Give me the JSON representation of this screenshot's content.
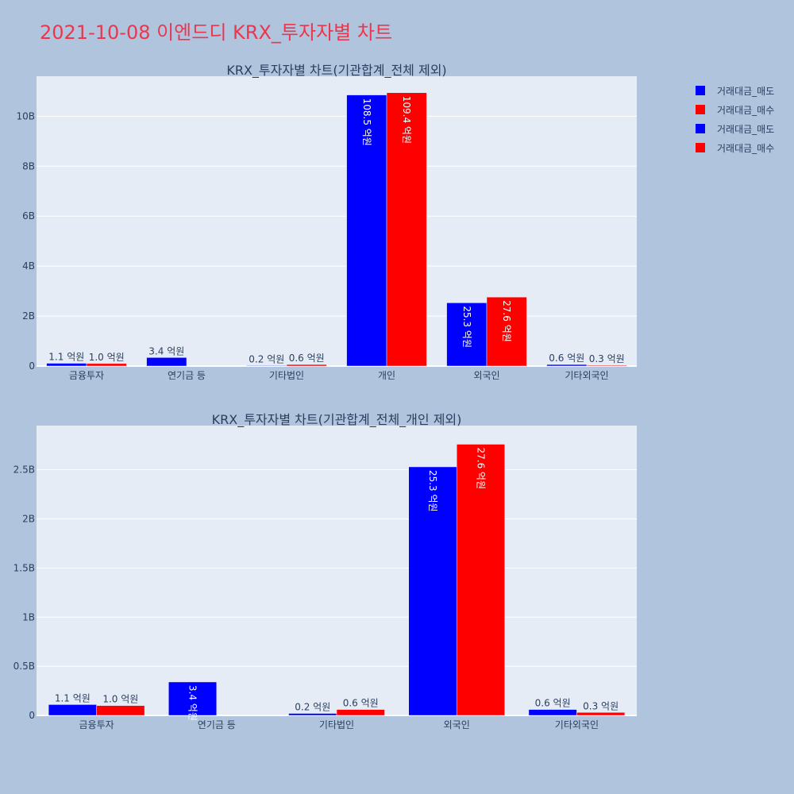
{
  "title": "2021-10-08 이엔드디 KRX_투자자별 차트",
  "legend": [
    {
      "label": "거래대금_매도",
      "color": "#0000ff"
    },
    {
      "label": "거래대금_매수",
      "color": "#ff0000"
    },
    {
      "label": "거래대금_매도",
      "color": "#0000ff"
    },
    {
      "label": "거래대금_매수",
      "color": "#ff0000"
    }
  ],
  "chart_data": [
    {
      "type": "bar",
      "title": "KRX_투자자별 차트(기관합계_전체 제외)",
      "categories": [
        "금융투자",
        "연기금 등",
        "기타법인",
        "개인",
        "외국인",
        "기타외국인"
      ],
      "series": [
        {
          "name": "거래대금_매도",
          "color": "#0000ff",
          "values": [
            110000000,
            340000000,
            20000000,
            10850000000,
            2530000000,
            60000000
          ],
          "labels": [
            "1.1 억원",
            "3.4 억원",
            "0.2 억원",
            "108.5 억원",
            "25.3 억원",
            "0.6 억원"
          ]
        },
        {
          "name": "거래대금_매수",
          "color": "#ff0000",
          "values": [
            100000000,
            0,
            60000000,
            10940000000,
            2760000000,
            30000000
          ],
          "labels": [
            "1.0 억원",
            "",
            "0.6 억원",
            "109.4 억원",
            "27.6 억원",
            "0.3 억원"
          ]
        }
      ],
      "yticks": [
        0,
        2000000000,
        4000000000,
        6000000000,
        8000000000,
        10000000000
      ],
      "yticklabels": [
        "0",
        "2B",
        "4B",
        "6B",
        "8B",
        "10B"
      ],
      "ylim": [
        0,
        11600000000
      ],
      "grid": true
    },
    {
      "type": "bar",
      "title": "KRX_투자자별 차트(기관합계_전체_개인 제외)",
      "categories": [
        "금융투자",
        "연기금 등",
        "기타법인",
        "외국인",
        "기타외국인"
      ],
      "series": [
        {
          "name": "거래대금_매도",
          "color": "#0000ff",
          "values": [
            110000000,
            340000000,
            20000000,
            2530000000,
            60000000
          ],
          "labels": [
            "1.1 억원",
            "3.4 억원",
            "0.2 억원",
            "25.3 억원",
            "0.6 억원"
          ]
        },
        {
          "name": "거래대금_매수",
          "color": "#ff0000",
          "values": [
            100000000,
            0,
            60000000,
            2760000000,
            30000000
          ],
          "labels": [
            "1.0 억원",
            "",
            "0.6 억원",
            "27.6 억원",
            "0.3 억원"
          ]
        }
      ],
      "yticks": [
        0,
        500000000,
        1000000000,
        1500000000,
        2000000000,
        2500000000
      ],
      "yticklabels": [
        "0",
        "0.5B",
        "1B",
        "1.5B",
        "2B",
        "2.5B"
      ],
      "ylim": [
        0,
        2950000000
      ],
      "grid": true
    }
  ]
}
